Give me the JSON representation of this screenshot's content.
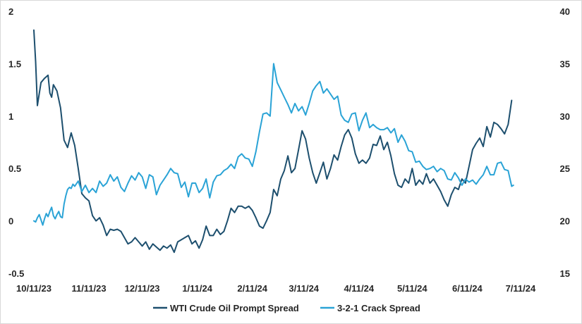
{
  "chart_data": {
    "type": "line",
    "title": "",
    "xlabel": "",
    "ylabel": "",
    "y2label": "",
    "grid": false,
    "legend_position": "bottom",
    "x_ticks": [
      "10/11/23",
      "11/11/23",
      "12/11/23",
      "1/11/24",
      "2/11/24",
      "3/11/24",
      "4/11/24",
      "5/11/24",
      "6/11/24",
      "7/11/24"
    ],
    "x_tick_index": [
      0,
      31,
      61,
      92,
      123,
      152,
      183,
      213,
      244,
      274
    ],
    "x_range": [
      0,
      280
    ],
    "y_left": {
      "min": -0.5,
      "max": 2,
      "ticks": [
        "2",
        "1.5",
        "1",
        "0.5",
        "0",
        "-0.5"
      ],
      "tick_values": [
        2,
        1.5,
        1,
        0.5,
        0,
        -0.5
      ]
    },
    "y_right": {
      "min": 15,
      "max": 40,
      "ticks": [
        "40",
        "35",
        "30",
        "25",
        "20",
        "15"
      ],
      "tick_values": [
        40,
        35,
        30,
        25,
        20,
        15
      ]
    },
    "series": [
      {
        "name": "WTI Crude Oil Prompt Spread",
        "axis": "left",
        "color": "#1d4f6e",
        "points": [
          [
            0,
            1.82
          ],
          [
            1,
            1.52
          ],
          [
            2,
            1.1
          ],
          [
            4,
            1.32
          ],
          [
            6,
            1.36
          ],
          [
            8,
            1.39
          ],
          [
            9,
            1.22
          ],
          [
            10,
            1.18
          ],
          [
            11,
            1.3
          ],
          [
            13,
            1.24
          ],
          [
            15,
            1.08
          ],
          [
            17,
            0.77
          ],
          [
            19,
            0.7
          ],
          [
            21,
            0.84
          ],
          [
            23,
            0.72
          ],
          [
            25,
            0.5
          ],
          [
            27,
            0.26
          ],
          [
            29,
            0.22
          ],
          [
            31,
            0.19
          ],
          [
            33,
            0.05
          ],
          [
            35,
            0.0
          ],
          [
            37,
            0.03
          ],
          [
            39,
            -0.04
          ],
          [
            41,
            -0.14
          ],
          [
            43,
            -0.08
          ],
          [
            45,
            -0.09
          ],
          [
            47,
            -0.08
          ],
          [
            49,
            -0.1
          ],
          [
            51,
            -0.16
          ],
          [
            53,
            -0.22
          ],
          [
            55,
            -0.2
          ],
          [
            57,
            -0.16
          ],
          [
            59,
            -0.2
          ],
          [
            61,
            -0.24
          ],
          [
            63,
            -0.2
          ],
          [
            65,
            -0.27
          ],
          [
            67,
            -0.22
          ],
          [
            69,
            -0.25
          ],
          [
            71,
            -0.28
          ],
          [
            73,
            -0.24
          ],
          [
            75,
            -0.26
          ],
          [
            77,
            -0.23
          ],
          [
            79,
            -0.3
          ],
          [
            81,
            -0.2
          ],
          [
            83,
            -0.18
          ],
          [
            85,
            -0.16
          ],
          [
            87,
            -0.14
          ],
          [
            89,
            -0.22
          ],
          [
            91,
            -0.19
          ],
          [
            93,
            -0.26
          ],
          [
            95,
            -0.18
          ],
          [
            97,
            -0.05
          ],
          [
            99,
            -0.14
          ],
          [
            101,
            -0.14
          ],
          [
            103,
            -0.08
          ],
          [
            105,
            -0.13
          ],
          [
            107,
            -0.1
          ],
          [
            109,
            0.0
          ],
          [
            111,
            0.12
          ],
          [
            113,
            0.08
          ],
          [
            115,
            0.14
          ],
          [
            117,
            0.14
          ],
          [
            119,
            0.12
          ],
          [
            121,
            0.14
          ],
          [
            123,
            0.1
          ],
          [
            125,
            0.03
          ],
          [
            127,
            -0.05
          ],
          [
            129,
            -0.07
          ],
          [
            131,
            0.0
          ],
          [
            133,
            0.08
          ],
          [
            135,
            0.3
          ],
          [
            137,
            0.24
          ],
          [
            139,
            0.4
          ],
          [
            141,
            0.48
          ],
          [
            143,
            0.62
          ],
          [
            145,
            0.46
          ],
          [
            147,
            0.5
          ],
          [
            149,
            0.68
          ],
          [
            151,
            0.86
          ],
          [
            153,
            0.78
          ],
          [
            155,
            0.6
          ],
          [
            157,
            0.46
          ],
          [
            159,
            0.36
          ],
          [
            161,
            0.46
          ],
          [
            163,
            0.56
          ],
          [
            165,
            0.4
          ],
          [
            167,
            0.5
          ],
          [
            169,
            0.63
          ],
          [
            171,
            0.58
          ],
          [
            173,
            0.71
          ],
          [
            175,
            0.82
          ],
          [
            177,
            0.87
          ],
          [
            179,
            0.79
          ],
          [
            181,
            0.64
          ],
          [
            183,
            0.55
          ],
          [
            185,
            0.58
          ],
          [
            187,
            0.55
          ],
          [
            189,
            0.6
          ],
          [
            191,
            0.73
          ],
          [
            193,
            0.72
          ],
          [
            195,
            0.81
          ],
          [
            197,
            0.68
          ],
          [
            199,
            0.75
          ],
          [
            201,
            0.62
          ],
          [
            203,
            0.45
          ],
          [
            205,
            0.34
          ],
          [
            207,
            0.32
          ],
          [
            209,
            0.4
          ],
          [
            211,
            0.36
          ],
          [
            213,
            0.5
          ],
          [
            215,
            0.34
          ],
          [
            217,
            0.39
          ],
          [
            219,
            0.35
          ],
          [
            221,
            0.45
          ],
          [
            223,
            0.36
          ],
          [
            225,
            0.4
          ],
          [
            227,
            0.34
          ],
          [
            229,
            0.28
          ],
          [
            231,
            0.2
          ],
          [
            233,
            0.14
          ],
          [
            235,
            0.25
          ],
          [
            237,
            0.32
          ],
          [
            239,
            0.3
          ],
          [
            241,
            0.4
          ],
          [
            243,
            0.36
          ],
          [
            245,
            0.52
          ],
          [
            247,
            0.68
          ],
          [
            249,
            0.74
          ],
          [
            251,
            0.79
          ],
          [
            253,
            0.71
          ],
          [
            255,
            0.9
          ],
          [
            257,
            0.8
          ],
          [
            259,
            0.94
          ],
          [
            261,
            0.92
          ],
          [
            263,
            0.88
          ],
          [
            265,
            0.83
          ],
          [
            267,
            0.92
          ],
          [
            269,
            1.15
          ]
        ]
      },
      {
        "name": "3-2-1 Crack Spread",
        "axis": "right",
        "color": "#2aa3d6",
        "points": [
          [
            0,
            20.0
          ],
          [
            1,
            19.9
          ],
          [
            2,
            20.3
          ],
          [
            3,
            20.6
          ],
          [
            4,
            20.1
          ],
          [
            5,
            19.6
          ],
          [
            6,
            20.2
          ],
          [
            7,
            20.7
          ],
          [
            8,
            20.4
          ],
          [
            9,
            20.9
          ],
          [
            10,
            21.3
          ],
          [
            11,
            20.5
          ],
          [
            12,
            20.2
          ],
          [
            13,
            20.6
          ],
          [
            14,
            20.9
          ],
          [
            15,
            20.4
          ],
          [
            16,
            20.3
          ],
          [
            17,
            21.6
          ],
          [
            18,
            22.4
          ],
          [
            19,
            23.0
          ],
          [
            20,
            23.2
          ],
          [
            21,
            23.1
          ],
          [
            22,
            23.5
          ],
          [
            23,
            23.3
          ],
          [
            25,
            23.8
          ],
          [
            27,
            22.8
          ],
          [
            29,
            23.4
          ],
          [
            31,
            22.7
          ],
          [
            33,
            23.1
          ],
          [
            35,
            22.7
          ],
          [
            37,
            23.8
          ],
          [
            39,
            23.3
          ],
          [
            41,
            23.6
          ],
          [
            43,
            24.4
          ],
          [
            45,
            23.8
          ],
          [
            47,
            24.2
          ],
          [
            49,
            23.2
          ],
          [
            51,
            22.8
          ],
          [
            53,
            23.6
          ],
          [
            55,
            24.3
          ],
          [
            57,
            23.9
          ],
          [
            59,
            24.6
          ],
          [
            61,
            24.2
          ],
          [
            63,
            23.1
          ],
          [
            65,
            24.4
          ],
          [
            67,
            24.2
          ],
          [
            69,
            22.5
          ],
          [
            71,
            23.4
          ],
          [
            73,
            23.9
          ],
          [
            75,
            24.4
          ],
          [
            77,
            25.0
          ],
          [
            79,
            24.6
          ],
          [
            81,
            24.5
          ],
          [
            83,
            23.2
          ],
          [
            85,
            23.7
          ],
          [
            87,
            22.3
          ],
          [
            89,
            23.6
          ],
          [
            91,
            23.6
          ],
          [
            93,
            22.7
          ],
          [
            95,
            23.1
          ],
          [
            97,
            24.0
          ],
          [
            99,
            22.2
          ],
          [
            101,
            23.7
          ],
          [
            103,
            24.3
          ],
          [
            105,
            24.4
          ],
          [
            107,
            24.8
          ],
          [
            109,
            25.0
          ],
          [
            111,
            25.4
          ],
          [
            113,
            25.0
          ],
          [
            115,
            26.1
          ],
          [
            117,
            26.4
          ],
          [
            119,
            26.0
          ],
          [
            121,
            25.9
          ],
          [
            123,
            25.2
          ],
          [
            125,
            26.6
          ],
          [
            127,
            28.5
          ],
          [
            129,
            30.2
          ],
          [
            131,
            30.3
          ],
          [
            133,
            30.0
          ],
          [
            135,
            35.0
          ],
          [
            137,
            33.2
          ],
          [
            139,
            32.5
          ],
          [
            141,
            31.8
          ],
          [
            143,
            31.1
          ],
          [
            145,
            30.3
          ],
          [
            147,
            31.2
          ],
          [
            149,
            30.5
          ],
          [
            151,
            30.9
          ],
          [
            153,
            30.1
          ],
          [
            155,
            31.2
          ],
          [
            157,
            32.4
          ],
          [
            159,
            32.9
          ],
          [
            161,
            33.3
          ],
          [
            163,
            32.2
          ],
          [
            165,
            32.6
          ],
          [
            167,
            32.1
          ],
          [
            169,
            31.6
          ],
          [
            171,
            31.9
          ],
          [
            173,
            30.1
          ],
          [
            175,
            29.6
          ],
          [
            177,
            29.4
          ],
          [
            179,
            30.2
          ],
          [
            181,
            30.3
          ],
          [
            183,
            28.6
          ],
          [
            185,
            29.6
          ],
          [
            187,
            30.3
          ],
          [
            189,
            28.9
          ],
          [
            191,
            29.2
          ],
          [
            193,
            28.9
          ],
          [
            195,
            28.7
          ],
          [
            197,
            28.7
          ],
          [
            199,
            28.9
          ],
          [
            201,
            28.4
          ],
          [
            203,
            28.8
          ],
          [
            205,
            27.5
          ],
          [
            207,
            28.2
          ],
          [
            209,
            27.6
          ],
          [
            211,
            26.7
          ],
          [
            213,
            26.6
          ],
          [
            215,
            25.6
          ],
          [
            217,
            25.7
          ],
          [
            219,
            25.2
          ],
          [
            221,
            24.9
          ],
          [
            223,
            25.0
          ],
          [
            225,
            25.2
          ],
          [
            227,
            24.7
          ],
          [
            229,
            25.0
          ],
          [
            231,
            24.8
          ],
          [
            233,
            24.0
          ],
          [
            235,
            23.9
          ],
          [
            237,
            24.6
          ],
          [
            239,
            24.1
          ],
          [
            241,
            23.4
          ],
          [
            243,
            24.0
          ],
          [
            245,
            23.7
          ],
          [
            247,
            23.9
          ],
          [
            249,
            23.5
          ],
          [
            251,
            24.0
          ],
          [
            253,
            24.4
          ],
          [
            255,
            25.2
          ],
          [
            257,
            24.4
          ],
          [
            259,
            24.4
          ],
          [
            261,
            25.5
          ],
          [
            263,
            25.6
          ],
          [
            265,
            24.9
          ],
          [
            267,
            24.8
          ],
          [
            269,
            23.3
          ],
          [
            270,
            23.4
          ]
        ]
      }
    ]
  }
}
